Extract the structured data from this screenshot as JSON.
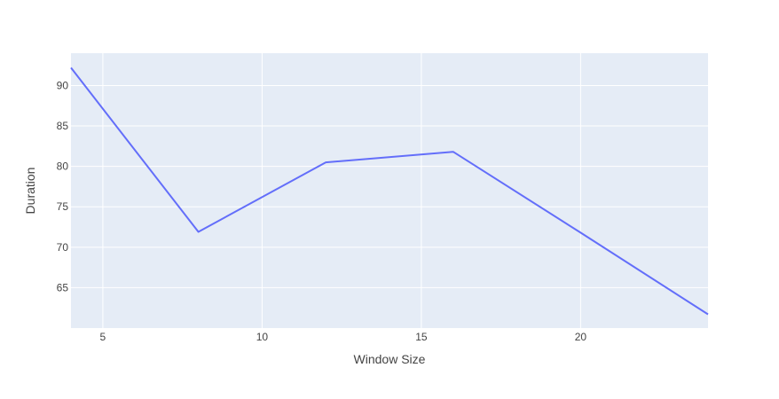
{
  "chart_data": {
    "type": "line",
    "title": "",
    "xlabel": "Window Size",
    "ylabel": "Duration",
    "xlim": [
      4,
      24
    ],
    "ylim": [
      60,
      94
    ],
    "x_ticks": [
      5,
      10,
      15,
      20
    ],
    "y_ticks": [
      65,
      70,
      75,
      80,
      85,
      90
    ],
    "grid": true,
    "series": [
      {
        "x": [
          4,
          8,
          12,
          16,
          20,
          24
        ],
        "y": [
          92.2,
          71.9,
          80.5,
          81.8,
          71.8,
          61.7
        ],
        "color": "#636efa"
      }
    ]
  },
  "colors": {
    "plot_background": "#e5ecf6",
    "grid": "#ffffff",
    "line": "#636efa",
    "text": "#444444"
  }
}
